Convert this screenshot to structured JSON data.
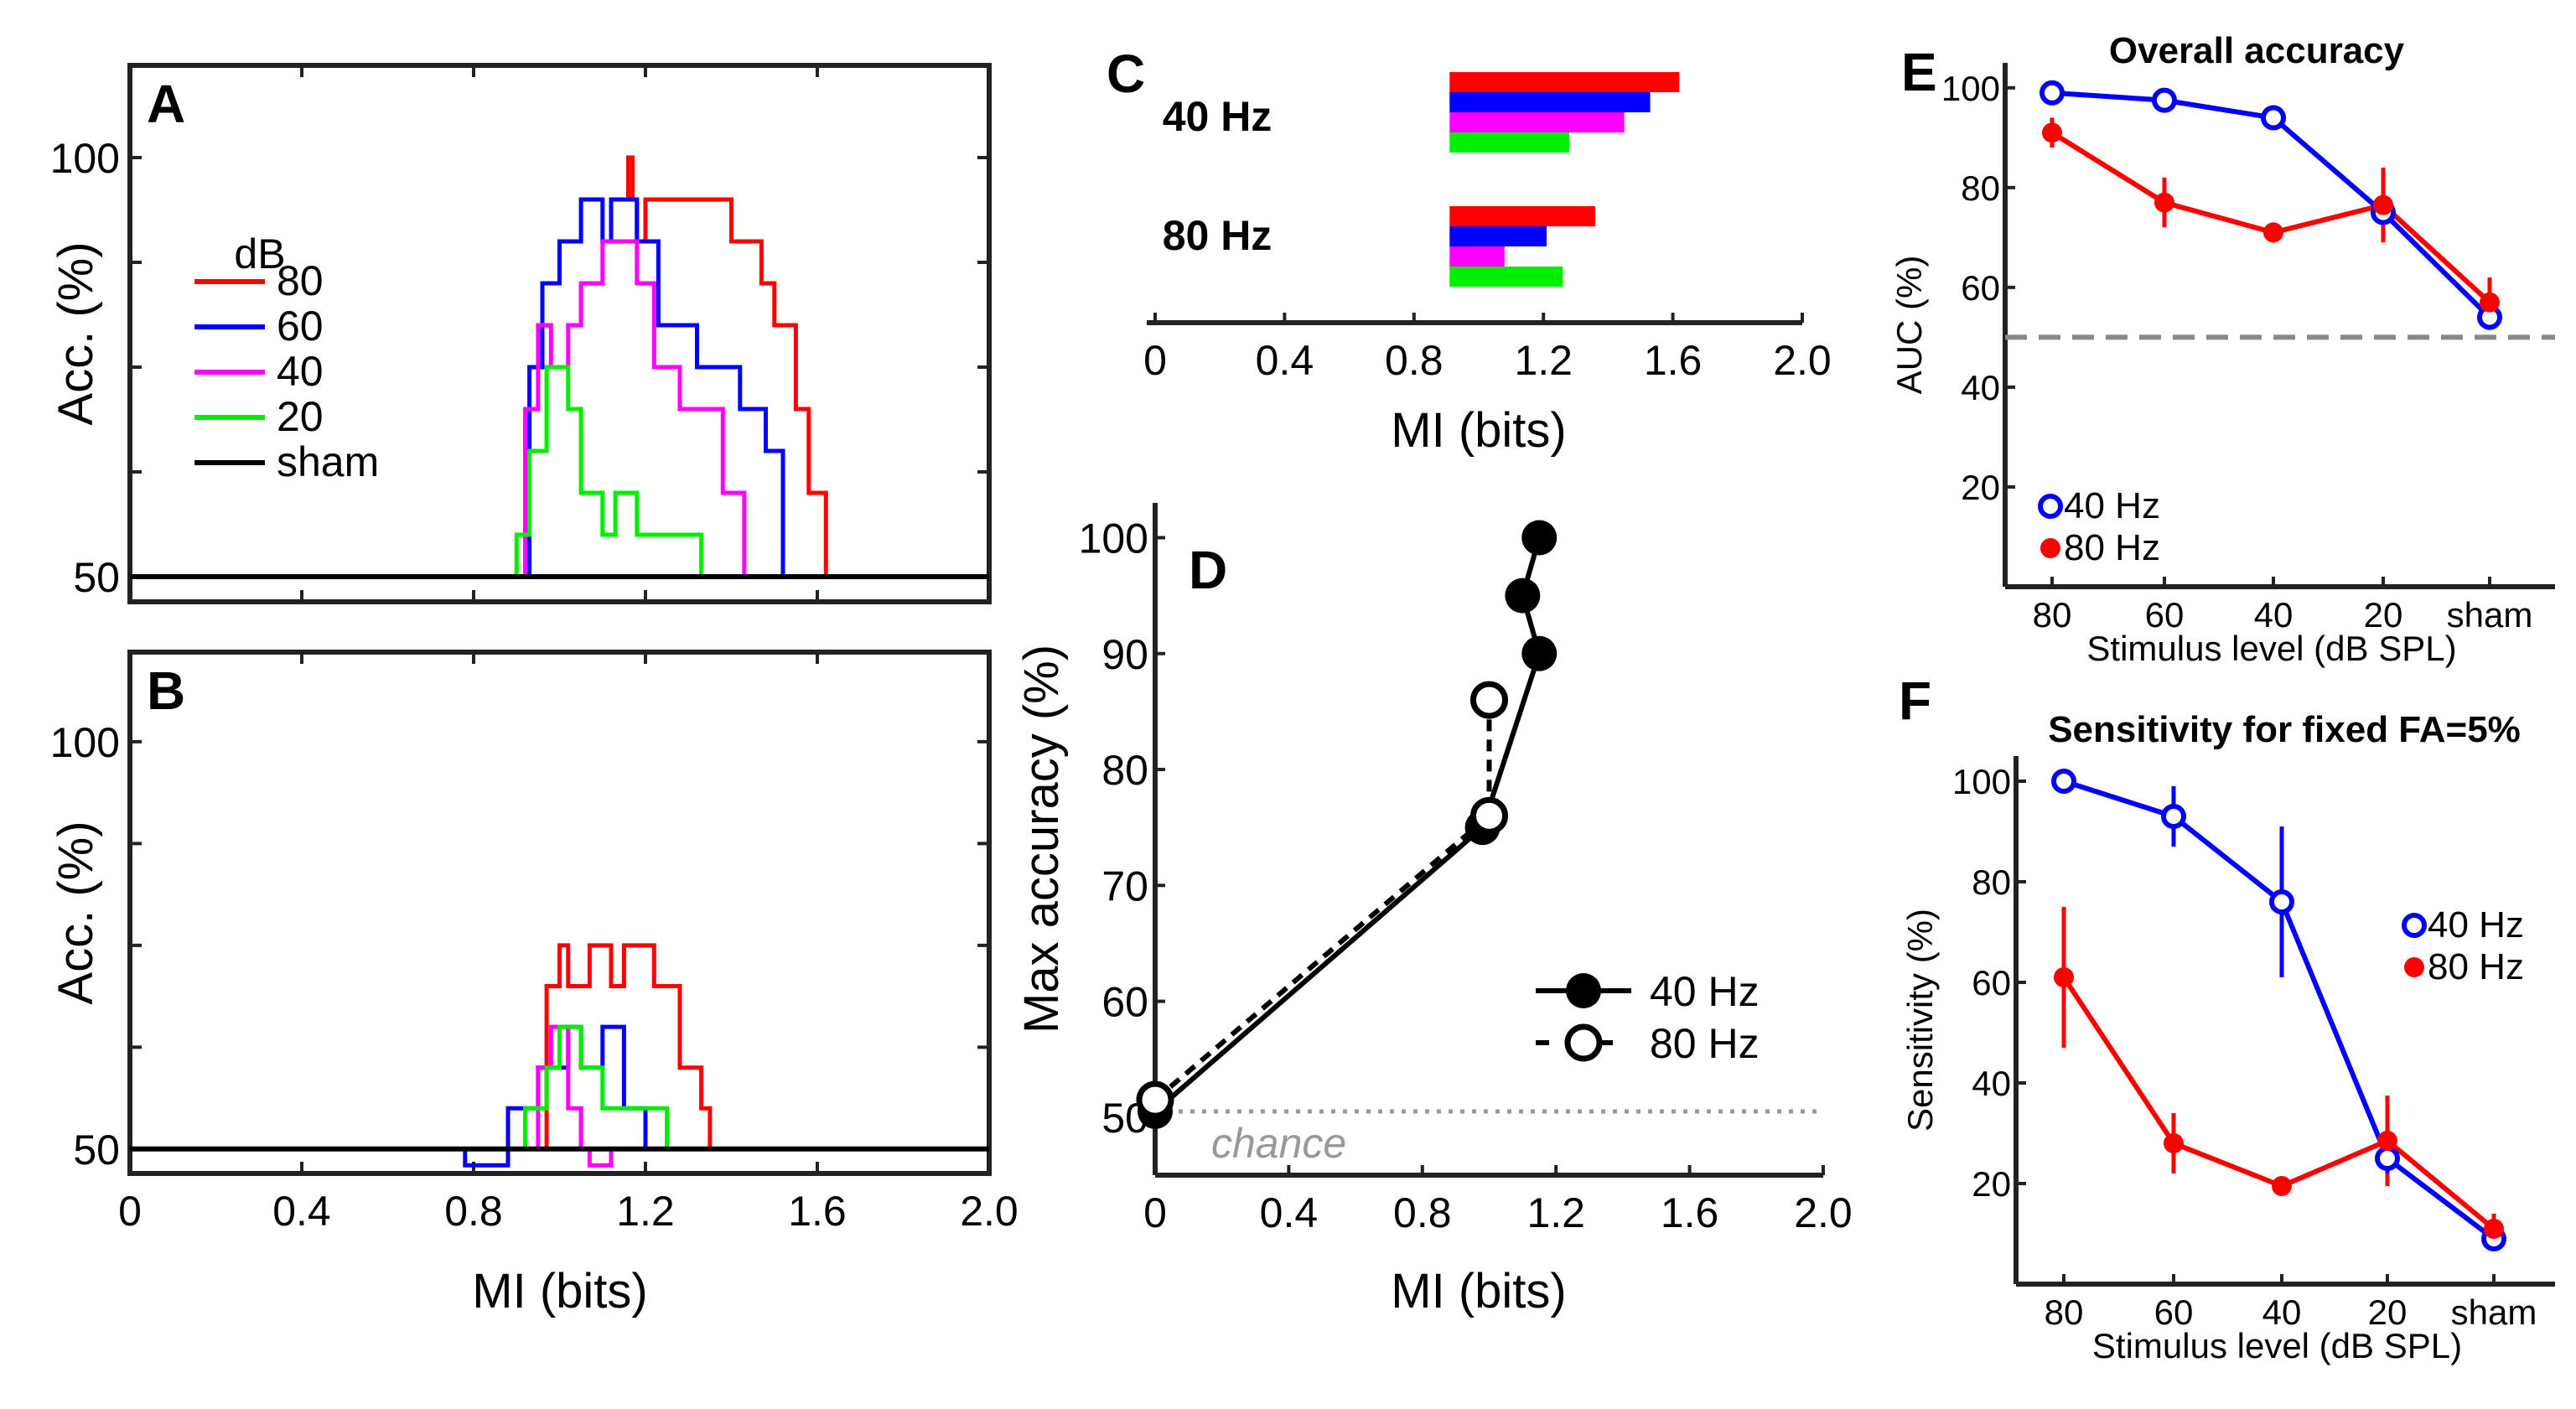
{
  "colors": {
    "c80": "#ff0000",
    "c60": "#0000ff",
    "c40": "#ff00ff",
    "c20": "#00ee00",
    "sham": "#000000",
    "gray": "#888888"
  },
  "chart_data": [
    {
      "id": "A",
      "type": "line",
      "panel_label": "A",
      "xlabel": "MI (bits)",
      "ylabel": "Acc. (%)",
      "xlim": [
        0,
        2.0
      ],
      "ylim": [
        47,
        111
      ],
      "xticks": [
        "0",
        "0.4",
        "0.8",
        "1.2",
        "1.6",
        "2.0"
      ],
      "yticks": [
        "50",
        "100"
      ],
      "legend_title": "dB",
      "legend": [
        "80",
        "60",
        "40",
        "20",
        "sham"
      ],
      "series": [
        {
          "name": "80",
          "color": "#ff0000",
          "x": [
            1.15,
            1.16,
            1.16,
            1.17,
            1.17,
            1.18,
            1.18,
            1.2,
            1.2,
            1.4,
            1.4,
            1.47,
            1.47,
            1.5,
            1.5,
            1.55,
            1.55,
            1.58,
            1.58,
            1.62,
            1.62
          ],
          "y": [
            95,
            95,
            100,
            100,
            95,
            95,
            90,
            90,
            95,
            95,
            90,
            90,
            85,
            85,
            80,
            80,
            70,
            70,
            60,
            60,
            50
          ]
        },
        {
          "name": "60",
          "color": "#0000ff",
          "x": [
            0.93,
            0.93,
            0.96,
            0.96,
            1.0,
            1.0,
            1.05,
            1.05,
            1.1,
            1.1,
            1.12,
            1.12,
            1.18,
            1.18,
            1.23,
            1.23,
            1.32,
            1.32,
            1.42,
            1.42,
            1.48,
            1.48,
            1.52,
            1.52
          ],
          "y": [
            50,
            75,
            75,
            85,
            85,
            90,
            90,
            95,
            95,
            90,
            90,
            95,
            95,
            90,
            90,
            80,
            80,
            75,
            75,
            70,
            70,
            65,
            65,
            50
          ]
        },
        {
          "name": "40",
          "color": "#ff00ff",
          "x": [
            0.92,
            0.92,
            0.95,
            0.95,
            0.98,
            0.98,
            1.02,
            1.02,
            1.05,
            1.05,
            1.1,
            1.1,
            1.18,
            1.18,
            1.22,
            1.22,
            1.28,
            1.28,
            1.38,
            1.38,
            1.43,
            1.43
          ],
          "y": [
            50,
            70,
            70,
            80,
            80,
            75,
            75,
            80,
            80,
            85,
            85,
            90,
            90,
            85,
            85,
            75,
            75,
            70,
            70,
            60,
            60,
            50
          ]
        },
        {
          "name": "20",
          "color": "#00ee00",
          "x": [
            0.9,
            0.9,
            0.93,
            0.93,
            0.97,
            0.97,
            1.02,
            1.02,
            1.05,
            1.05,
            1.1,
            1.1,
            1.13,
            1.13,
            1.18,
            1.18,
            1.25,
            1.25,
            1.33,
            1.33
          ],
          "y": [
            50,
            55,
            55,
            65,
            65,
            75,
            75,
            70,
            70,
            60,
            60,
            55,
            55,
            60,
            60,
            55,
            55,
            55,
            55,
            50
          ]
        },
        {
          "name": "sham",
          "color": "#000000",
          "x": [
            0,
            2.0
          ],
          "y": [
            50,
            50
          ]
        }
      ]
    },
    {
      "id": "B",
      "type": "line",
      "panel_label": "B",
      "xlabel": "MI (bits)",
      "ylabel": "Acc. (%)",
      "xlim": [
        0,
        2.0
      ],
      "ylim": [
        47,
        111
      ],
      "xticks": [
        "0",
        "0.4",
        "0.8",
        "1.2",
        "1.6",
        "2.0"
      ],
      "yticks": [
        "50",
        "100"
      ],
      "series": [
        {
          "name": "80",
          "color": "#ff0000",
          "x": [
            0.97,
            0.97,
            1.0,
            1.0,
            1.02,
            1.02,
            1.07,
            1.07,
            1.12,
            1.12,
            1.15,
            1.15,
            1.22,
            1.22,
            1.28,
            1.28,
            1.33,
            1.33,
            1.35,
            1.35
          ],
          "y": [
            50,
            70,
            70,
            75,
            75,
            70,
            70,
            75,
            75,
            70,
            70,
            75,
            75,
            70,
            70,
            60,
            60,
            55,
            55,
            50
          ]
        },
        {
          "name": "60",
          "color": "#0000ff",
          "x": [
            0.78,
            0.78,
            0.88,
            0.88,
            0.95,
            0.95,
            1.02,
            1.02,
            1.05,
            1.05,
            1.1,
            1.1,
            1.15,
            1.15,
            1.2,
            1.2
          ],
          "y": [
            50,
            48,
            48,
            55,
            55,
            60,
            60,
            65,
            65,
            60,
            60,
            65,
            65,
            55,
            55,
            50
          ]
        },
        {
          "name": "40",
          "color": "#ff00ff",
          "x": [
            0.95,
            0.95,
            0.98,
            0.98,
            1.02,
            1.02,
            1.05,
            1.05,
            1.07,
            1.07,
            1.12,
            1.12
          ],
          "y": [
            50,
            60,
            60,
            65,
            65,
            55,
            55,
            50,
            50,
            48,
            48,
            50
          ]
        },
        {
          "name": "20",
          "color": "#00ee00",
          "x": [
            0.92,
            0.92,
            0.97,
            0.97,
            1.0,
            1.0,
            1.05,
            1.05,
            1.1,
            1.1,
            1.15,
            1.15,
            1.25,
            1.25
          ],
          "y": [
            50,
            55,
            55,
            60,
            60,
            65,
            65,
            60,
            60,
            55,
            55,
            55,
            55,
            50
          ]
        },
        {
          "name": "sham",
          "color": "#000000",
          "x": [
            0,
            2.0
          ],
          "y": [
            50,
            50
          ]
        }
      ]
    },
    {
      "id": "C",
      "type": "bar",
      "orientation": "horizontal",
      "panel_label": "C",
      "xlabel": "MI (bits)",
      "xlim": [
        0,
        2.0
      ],
      "xticks": [
        "0",
        "0.4",
        "0.8",
        "1.2",
        "1.6",
        "2.0"
      ],
      "categories": [
        "40 Hz",
        "80 Hz"
      ],
      "bar_start": 0.91,
      "series": [
        {
          "name": "80 dB",
          "color": "#ff0000",
          "values": [
            1.62,
            1.36
          ]
        },
        {
          "name": "60 dB",
          "color": "#0000ff",
          "values": [
            1.53,
            1.21
          ]
        },
        {
          "name": "40 dB",
          "color": "#ff00ff",
          "values": [
            1.45,
            1.08
          ]
        },
        {
          "name": "20 dB",
          "color": "#00ee00",
          "values": [
            1.28,
            1.26
          ]
        }
      ]
    },
    {
      "id": "D",
      "type": "line",
      "panel_label": "D",
      "xlabel": "MI (bits)",
      "ylabel": "Max accuracy (%)",
      "xlim": [
        0,
        2.0
      ],
      "ylim": [
        45,
        103
      ],
      "xticks": [
        "0",
        "0.4",
        "0.8",
        "1.2",
        "1.6",
        "2.0"
      ],
      "yticks": [
        "50",
        "60",
        "70",
        "80",
        "90",
        "100"
      ],
      "annotation": "chance",
      "chance_level": 50.5,
      "legend": [
        "40 Hz",
        "80 Hz"
      ],
      "series": [
        {
          "name": "40 Hz",
          "marker": "filled",
          "linestyle": "solid",
          "x": [
            0.0,
            0.98,
            1.15,
            1.1,
            1.15
          ],
          "y": [
            50.5,
            75,
            90,
            95,
            100
          ]
        },
        {
          "name": "80 Hz",
          "marker": "open",
          "linestyle": "dashed",
          "x": [
            0.0,
            1.0,
            1.0
          ],
          "y": [
            51.5,
            76,
            86
          ]
        }
      ]
    },
    {
      "id": "E",
      "type": "line",
      "panel_label": "E",
      "title": "Overall accuracy",
      "xlabel": "Stimulus level (dB SPL)",
      "ylabel": "AUC (%)",
      "categories": [
        "80",
        "60",
        "40",
        "20",
        "sham"
      ],
      "ylim": [
        0,
        105
      ],
      "yticks": [
        "20",
        "40",
        "60",
        "80",
        "100"
      ],
      "chance_level": 50,
      "legend": [
        "40 Hz",
        "80 Hz"
      ],
      "series": [
        {
          "name": "40 Hz",
          "color": "#0000ff",
          "marker": "open",
          "values": [
            99,
            97.5,
            94,
            75,
            54
          ],
          "err": [
            0,
            0,
            0,
            0,
            2.5
          ]
        },
        {
          "name": "80 Hz",
          "color": "#ff0000",
          "marker": "filled",
          "values": [
            91,
            77,
            71,
            76.5,
            57
          ],
          "err": [
            3,
            5,
            2,
            7.5,
            5
          ]
        }
      ]
    },
    {
      "id": "F",
      "type": "line",
      "panel_label": "F",
      "title": "Sensitivity for fixed FA=5%",
      "xlabel": "Stimulus level (dB SPL)",
      "ylabel": "Sensitivity (%)",
      "categories": [
        "80",
        "60",
        "40",
        "20",
        "sham"
      ],
      "ylim": [
        0,
        105
      ],
      "yticks": [
        "20",
        "40",
        "60",
        "80",
        "100"
      ],
      "legend": [
        "40 Hz",
        "80 Hz"
      ],
      "series": [
        {
          "name": "40 Hz",
          "color": "#0000ff",
          "marker": "open",
          "values": [
            100,
            93,
            76,
            25,
            9
          ],
          "err": [
            0,
            6,
            15,
            3,
            2
          ]
        },
        {
          "name": "80 Hz",
          "color": "#ff0000",
          "marker": "filled",
          "values": [
            61,
            28,
            19.5,
            28.5,
            11
          ],
          "err": [
            14,
            6,
            1.5,
            9,
            3
          ]
        }
      ]
    }
  ]
}
